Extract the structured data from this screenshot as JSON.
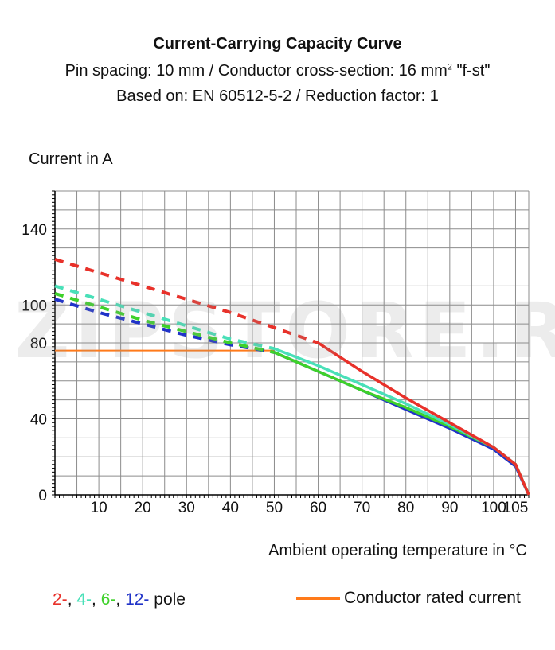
{
  "title": "Current-Carrying Capacity Curve",
  "subtitle_pre": "Pin spacing: 10 mm / Conductor cross-section: 16 mm",
  "subtitle_sup": "2",
  "subtitle_post": " \"f-st\"",
  "subtitle2": "Based on: EN 60512-5-2 / Reduction factor: 1",
  "watermark": "ZIPSTORE.RU",
  "chart_data": {
    "type": "line",
    "ylabel": "Current in A",
    "xlabel": "Ambient operating temperature in °C",
    "xlim": [
      0,
      108
    ],
    "ylim": [
      0,
      160
    ],
    "x_ticks": [
      10,
      20,
      30,
      40,
      50,
      60,
      70,
      80,
      90,
      100,
      105
    ],
    "y_ticks": [
      0,
      40,
      80,
      100,
      140
    ],
    "grid": true,
    "series": [
      {
        "name": "2-",
        "color": "#e8312a",
        "dashed": {
          "x": [
            0,
            10,
            20,
            30,
            40,
            50,
            60
          ],
          "y": [
            124,
            117,
            110,
            103,
            96,
            88,
            80
          ]
        },
        "solid": {
          "x": [
            60,
            70,
            80,
            90,
            100,
            105,
            108
          ],
          "y": [
            80,
            65,
            51,
            38,
            25,
            16,
            0
          ]
        }
      },
      {
        "name": "4-",
        "color": "#49e0b8",
        "dashed": {
          "x": [
            0,
            10,
            20,
            30,
            40,
            50
          ],
          "y": [
            110,
            103,
            96,
            89,
            82,
            77
          ]
        },
        "solid": {
          "x": [
            50,
            60,
            70,
            80,
            90,
            100,
            105,
            108
          ],
          "y": [
            77,
            68,
            58,
            48,
            37,
            25,
            16,
            0
          ]
        }
      },
      {
        "name": "6-",
        "color": "#3ed12a",
        "dashed": {
          "x": [
            0,
            10,
            20,
            30,
            40,
            50
          ],
          "y": [
            106,
            99,
            92,
            86,
            80,
            75
          ]
        },
        "solid": {
          "x": [
            50,
            60,
            70,
            80,
            90,
            100,
            105,
            108
          ],
          "y": [
            75,
            65,
            55,
            46,
            36,
            25,
            16,
            0
          ]
        }
      },
      {
        "name": "12-",
        "color": "#2033c8",
        "dashed": {
          "x": [
            0,
            10,
            20,
            30,
            40,
            50
          ],
          "y": [
            103,
            96,
            90,
            84,
            79,
            75
          ]
        },
        "solid": {
          "x": [
            50,
            60,
            70,
            80,
            90,
            100,
            105,
            108
          ],
          "y": [
            75,
            65,
            55,
            45,
            35,
            24,
            15,
            0
          ]
        }
      },
      {
        "name": "Conductor rated current",
        "color": "#ff7a1a",
        "x": [
          0,
          50
        ],
        "y": [
          76,
          76
        ]
      }
    ]
  },
  "legend": {
    "items": [
      {
        "text": "2-",
        "color": "#e8312a"
      },
      {
        "text": ", ",
        "color": "#111111"
      },
      {
        "text": "4-",
        "color": "#49e0b8"
      },
      {
        "text": ", ",
        "color": "#111111"
      },
      {
        "text": "6-",
        "color": "#3ed12a"
      },
      {
        "text": ", ",
        "color": "#111111"
      },
      {
        "text": "12-",
        "color": "#2033c8"
      },
      {
        "text": " pole",
        "color": "#111111"
      }
    ],
    "rated": "Conductor rated current"
  }
}
